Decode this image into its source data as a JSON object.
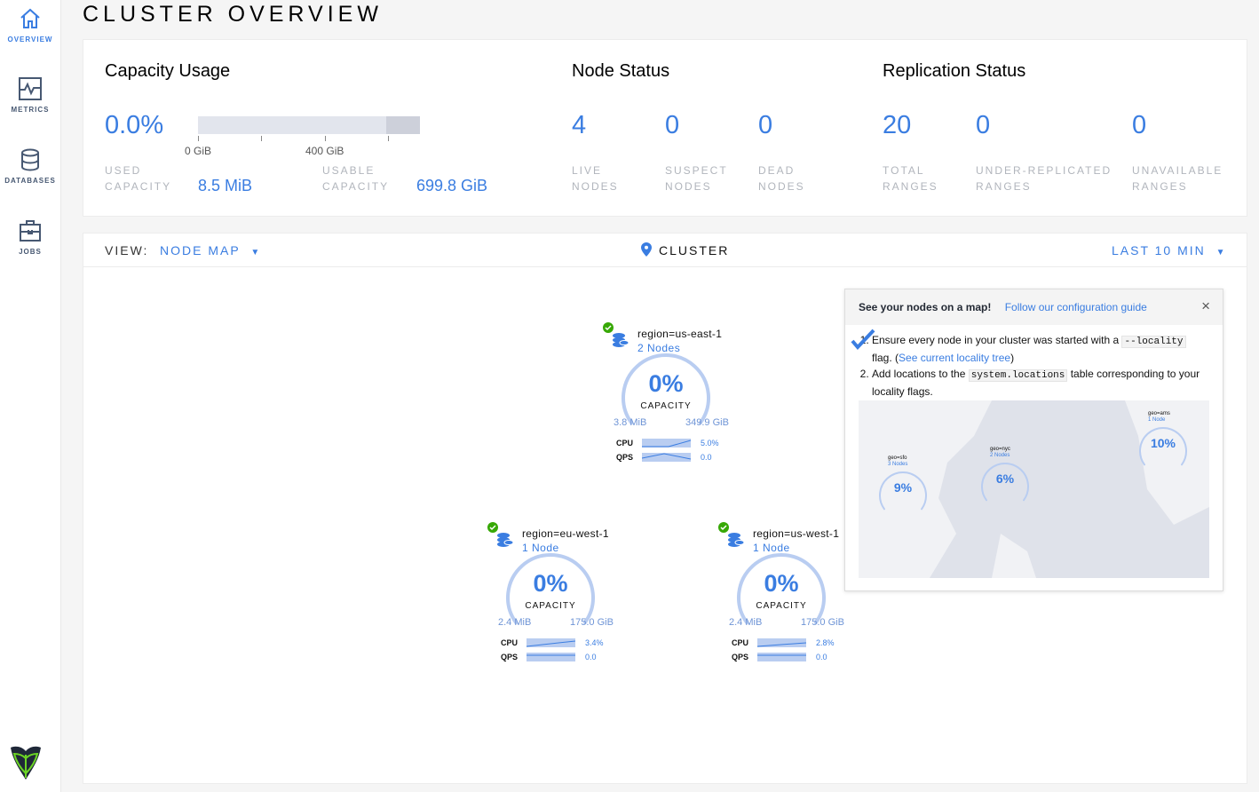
{
  "sidebar": {
    "items": [
      {
        "label": "OVERVIEW",
        "icon": "home-icon"
      },
      {
        "label": "METRICS",
        "icon": "metrics-icon"
      },
      {
        "label": "DATABASES",
        "icon": "database-icon"
      },
      {
        "label": "JOBS",
        "icon": "jobs-icon"
      }
    ]
  },
  "page": {
    "title": "CLUSTER OVERVIEW"
  },
  "capacity": {
    "heading": "Capacity Usage",
    "percent": "0.0%",
    "fill_fraction": 0.0,
    "tick0": "0 GiB",
    "tick1": "400 GiB",
    "used_label1": "USED",
    "used_label2": "CAPACITY",
    "used_value": "8.5 MiB",
    "usable_label1": "USABLE",
    "usable_label2": "CAPACITY",
    "usable_value": "699.8 GiB"
  },
  "node_status": {
    "heading": "Node Status",
    "stats": [
      {
        "value": "4",
        "l1": "LIVE",
        "l2": "NODES"
      },
      {
        "value": "0",
        "l1": "SUSPECT",
        "l2": "NODES"
      },
      {
        "value": "0",
        "l1": "DEAD",
        "l2": "NODES"
      }
    ]
  },
  "replication": {
    "heading": "Replication Status",
    "stats": [
      {
        "value": "20",
        "l1": "TOTAL",
        "l2": "RANGES"
      },
      {
        "value": "0",
        "l1": "UNDER-REPLICATED",
        "l2": "RANGES"
      },
      {
        "value": "0",
        "l1": "UNAVAILABLE",
        "l2": "RANGES"
      }
    ]
  },
  "viewbar": {
    "view_label": "VIEW:",
    "view_value": "NODE MAP",
    "location": "CLUSTER",
    "time": "LAST 10 MIN"
  },
  "nodes": [
    {
      "name": "region=us-east-1",
      "count": "2 Nodes",
      "percent": "0%",
      "cap_label": "CAPACITY",
      "used": "3.8 MiB",
      "total": "349.9 GiB",
      "cpu_label": "CPU",
      "cpu": "5.0%",
      "qps_label": "QPS",
      "qps": "0.0"
    },
    {
      "name": "region=eu-west-1",
      "count": "1 Node",
      "percent": "0%",
      "cap_label": "CAPACITY",
      "used": "2.4 MiB",
      "total": "175.0 GiB",
      "cpu_label": "CPU",
      "cpu": "3.4%",
      "qps_label": "QPS",
      "qps": "0.0"
    },
    {
      "name": "region=us-west-1",
      "count": "1 Node",
      "percent": "0%",
      "cap_label": "CAPACITY",
      "used": "2.4 MiB",
      "total": "175.0 GiB",
      "cpu_label": "CPU",
      "cpu": "2.8%",
      "qps_label": "QPS",
      "qps": "0.0"
    }
  ],
  "tip": {
    "title": "See your nodes on a map!",
    "guide_link": "Follow our configuration guide",
    "step1a": "Ensure every node in your cluster was started with a",
    "step1code": "--locality",
    "step1b": "flag. (",
    "step1link": "See current locality tree",
    "step1c": ")",
    "step2a": "Add locations to the",
    "step2code": "system.locations",
    "step2b": "table corresponding to your locality flags.",
    "map_nodes": [
      {
        "name": "geo=sfo",
        "count": "3 Nodes",
        "percent": "9%"
      },
      {
        "name": "geo=nyc",
        "count": "2 Nodes",
        "percent": "6%"
      },
      {
        "name": "geo=ams",
        "count": "1 Node",
        "percent": "10%"
      }
    ]
  },
  "colors": {
    "accent": "#3a7de1",
    "healthy": "#37a806"
  }
}
